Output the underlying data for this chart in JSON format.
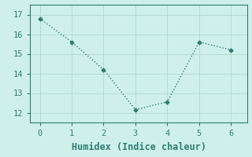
{
  "x": [
    0,
    1,
    2,
    3,
    4,
    5,
    6
  ],
  "y": [
    16.8,
    15.6,
    14.2,
    12.15,
    12.55,
    15.6,
    15.2
  ],
  "line_color": "#2e7d72",
  "marker": "D",
  "marker_size": 2.5,
  "line_width": 1.0,
  "xlabel": "Humidex (Indice chaleur)",
  "xlim": [
    -0.3,
    6.5
  ],
  "ylim": [
    11.5,
    17.5
  ],
  "yticks": [
    12,
    13,
    14,
    15,
    16,
    17
  ],
  "xticks": [
    0,
    1,
    2,
    3,
    4,
    5,
    6
  ],
  "background_color": "#cff0ea",
  "grid_color": "#b0d8d2",
  "spine_color": "#2e7d72",
  "font_family": "monospace",
  "xlabel_fontsize": 8.5,
  "tick_fontsize": 7.5,
  "tick_color": "#2e7d72",
  "label_color": "#2e7d72"
}
